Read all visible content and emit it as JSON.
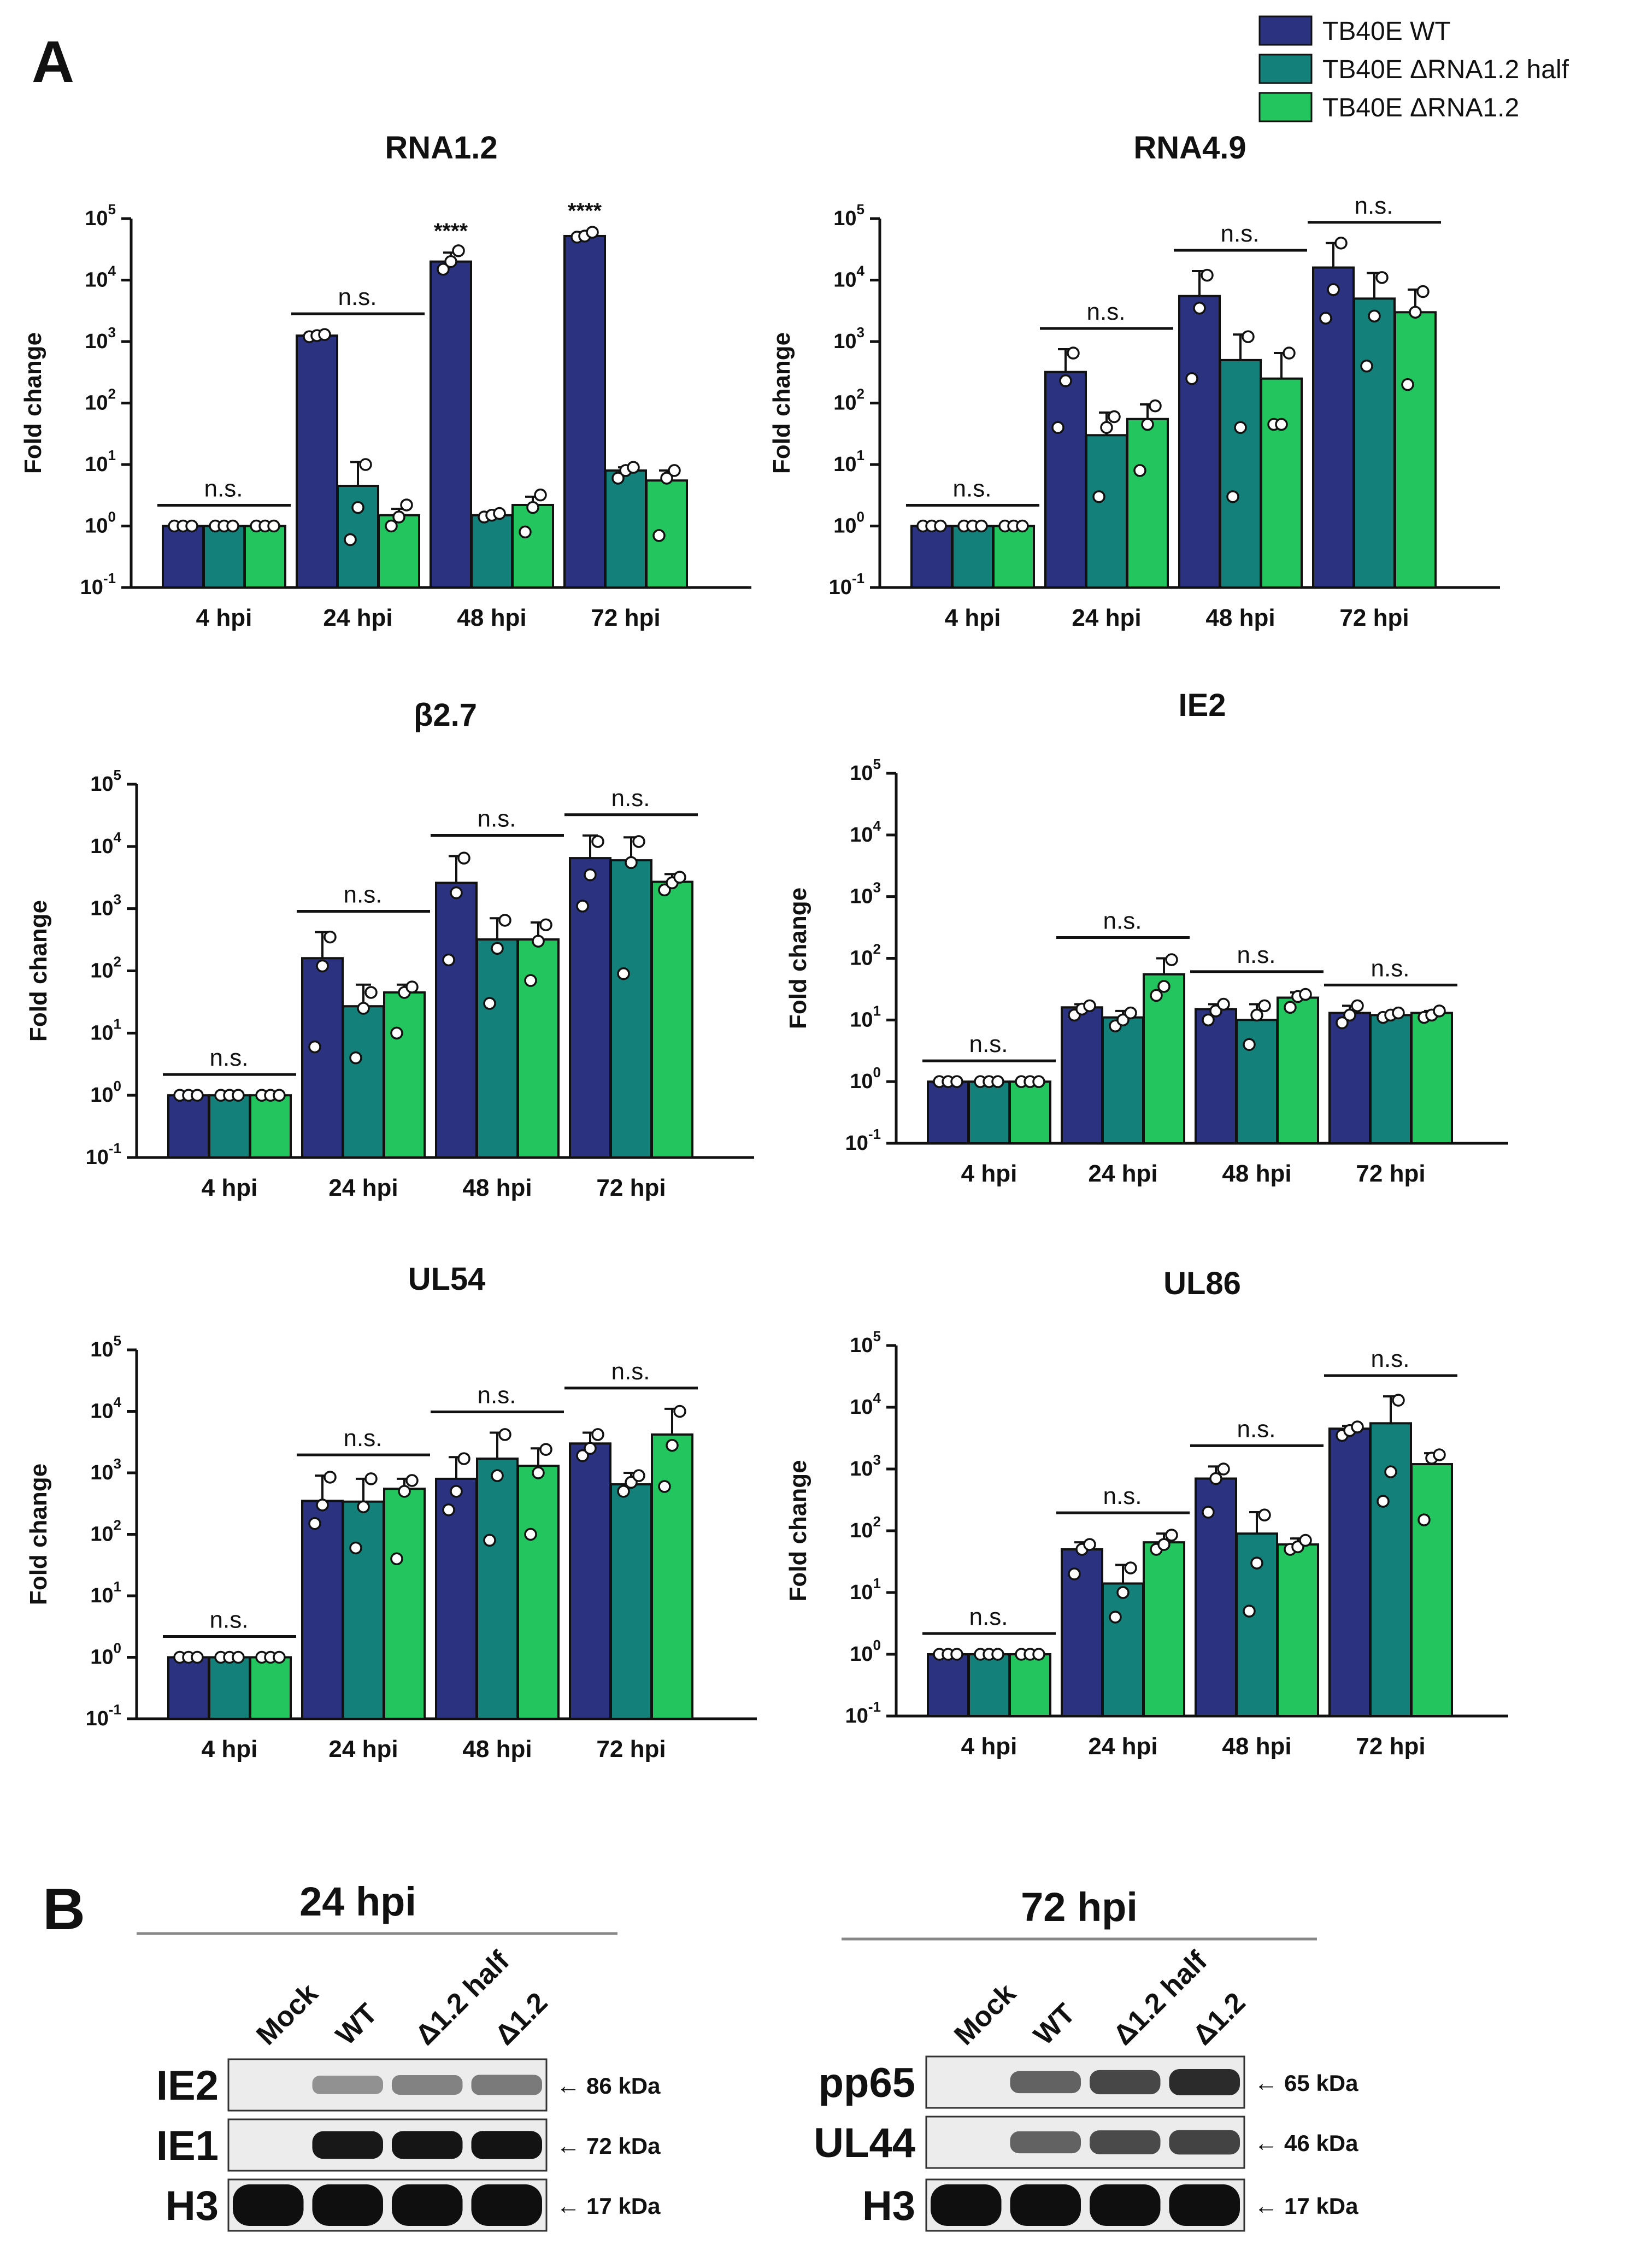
{
  "panel_a_label": "A",
  "panel_b_label": "B",
  "legend": [
    {
      "label": "TB40E WT",
      "color": "#2B3380"
    },
    {
      "label": "TB40E ΔRNA1.2 half",
      "color": "#138079"
    },
    {
      "label": "TB40E ΔRNA1.2",
      "color": "#22C55E"
    }
  ],
  "colors": {
    "wt": "#2B3380",
    "half": "#138079",
    "ko": "#22C55E",
    "axis": "#111111"
  },
  "chart_data": [
    {
      "type": "bar",
      "title": "RNA1.2",
      "ylabel": "Fold change",
      "yscale": "log",
      "ylim": [
        0.1,
        100000
      ],
      "yticks": [
        "10",
        "10",
        "10",
        "10",
        "10",
        "10",
        "10"
      ],
      "ytick_exps": [
        "-1",
        "0",
        "1",
        "2",
        "3",
        "4",
        "5"
      ],
      "categories": [
        "4 hpi",
        "24 hpi",
        "48 hpi",
        "72 hpi"
      ],
      "series": [
        {
          "name": "TB40E WT",
          "values": [
            1,
            1250,
            20000,
            52000
          ],
          "errors": [
            1,
            1300,
            28000,
            60000
          ],
          "points": [
            [
              1,
              1,
              1
            ],
            [
              1200,
              1250,
              1300
            ],
            [
              15000,
              20000,
              30000
            ],
            [
              50000,
              52000,
              60000
            ]
          ]
        },
        {
          "name": "TB40E ΔRNA1.2 half",
          "values": [
            1,
            4.5,
            1.5,
            8
          ],
          "errors": [
            1,
            11,
            1.5,
            9
          ],
          "points": [
            [
              1,
              1,
              1
            ],
            [
              0.6,
              2,
              10
            ],
            [
              1.4,
              1.5,
              1.6
            ],
            [
              6,
              8,
              9
            ]
          ]
        },
        {
          "name": "TB40E ΔRNA1.2",
          "values": [
            1,
            1.5,
            2.2,
            5.5
          ],
          "errors": [
            1,
            1.9,
            3,
            8
          ],
          "points": [
            [
              1,
              1,
              1
            ],
            [
              1,
              1.4,
              2.2
            ],
            [
              0.8,
              2,
              3.2
            ],
            [
              0.7,
              6,
              8
            ]
          ]
        }
      ],
      "significance": [
        "n.s.",
        "n.s.",
        "****",
        "****"
      ]
    },
    {
      "type": "bar",
      "title": "RNA4.9",
      "ylabel": "Fold change",
      "yscale": "log",
      "ylim": [
        0.1,
        100000
      ],
      "yticks": [
        "10",
        "10",
        "10",
        "10",
        "10",
        "10",
        "10"
      ],
      "ytick_exps": [
        "-1",
        "0",
        "1",
        "2",
        "3",
        "4",
        "5"
      ],
      "categories": [
        "4 hpi",
        "24 hpi",
        "48 hpi",
        "72 hpi"
      ],
      "series": [
        {
          "name": "TB40E WT",
          "values": [
            1,
            320,
            5500,
            16000
          ],
          "errors": [
            1,
            750,
            14000,
            40000
          ],
          "points": [
            [
              1,
              1,
              1
            ],
            [
              40,
              230,
              650
            ],
            [
              250,
              3500,
              12000
            ],
            [
              2400,
              7000,
              40000
            ]
          ]
        },
        {
          "name": "TB40E ΔRNA1.2 half",
          "values": [
            1,
            30,
            500,
            5000
          ],
          "errors": [
            1,
            70,
            1300,
            13000
          ],
          "points": [
            [
              1,
              1,
              1
            ],
            [
              3,
              40,
              60
            ],
            [
              3,
              40,
              1200
            ],
            [
              400,
              2600,
              11000
            ]
          ]
        },
        {
          "name": "TB40E ΔRNA1.2",
          "values": [
            1,
            55,
            250,
            3000
          ],
          "errors": [
            1,
            95,
            650,
            7000
          ],
          "points": [
            [
              1,
              1,
              1
            ],
            [
              8,
              45,
              90
            ],
            [
              45,
              45,
              650
            ],
            [
              200,
              3000,
              6500
            ]
          ]
        }
      ],
      "significance": [
        "n.s.",
        "n.s.",
        "n.s.",
        "n.s."
      ]
    },
    {
      "type": "bar",
      "title": "β2.7",
      "ylabel": "Fold change",
      "yscale": "log",
      "ylim": [
        0.1,
        100000
      ],
      "yticks": [
        "10",
        "10",
        "10",
        "10",
        "10",
        "10",
        "10"
      ],
      "ytick_exps": [
        "-1",
        "0",
        "1",
        "2",
        "3",
        "4",
        "5"
      ],
      "categories": [
        "4 hpi",
        "24 hpi",
        "48 hpi",
        "72 hpi"
      ],
      "series": [
        {
          "name": "TB40E WT",
          "values": [
            1,
            160,
            2600,
            6500
          ],
          "errors": [
            1,
            420,
            7000,
            15000
          ],
          "points": [
            [
              1,
              1,
              1
            ],
            [
              6,
              120,
              350
            ],
            [
              150,
              1800,
              6500
            ],
            [
              1100,
              3500,
              12000
            ]
          ]
        },
        {
          "name": "TB40E ΔRNA1.2 half",
          "values": [
            1,
            27,
            320,
            6000
          ],
          "errors": [
            1,
            60,
            700,
            14000
          ],
          "points": [
            [
              1,
              1,
              1
            ],
            [
              4,
              25,
              45
            ],
            [
              30,
              230,
              650
            ],
            [
              90,
              5500,
              12000
            ]
          ]
        },
        {
          "name": "TB40E ΔRNA1.2",
          "values": [
            1,
            45,
            320,
            2700
          ],
          "errors": [
            1,
            60,
            600,
            3600
          ],
          "points": [
            [
              1,
              1,
              1
            ],
            [
              10,
              45,
              55
            ],
            [
              70,
              300,
              550
            ],
            [
              2000,
              2600,
              3200
            ]
          ]
        }
      ],
      "significance": [
        "n.s.",
        "n.s.",
        "n.s.",
        "n.s."
      ]
    },
    {
      "type": "bar",
      "title": "IE2",
      "ylabel": "Fold change",
      "yscale": "log",
      "ylim": [
        0.1,
        100000
      ],
      "yticks": [
        "10",
        "10",
        "10",
        "10",
        "10",
        "10",
        "10"
      ],
      "ytick_exps": [
        "-1",
        "0",
        "1",
        "2",
        "3",
        "4",
        "5"
      ],
      "categories": [
        "4 hpi",
        "24 hpi",
        "48 hpi",
        "72 hpi"
      ],
      "series": [
        {
          "name": "TB40E WT",
          "values": [
            1,
            16,
            15,
            13
          ],
          "errors": [
            1,
            18,
            18,
            17
          ],
          "points": [
            [
              1,
              1,
              1
            ],
            [
              12,
              15,
              17
            ],
            [
              10,
              14,
              18
            ],
            [
              9,
              12,
              17
            ]
          ]
        },
        {
          "name": "TB40E ΔRNA1.2 half",
          "values": [
            1,
            11,
            10,
            12
          ],
          "errors": [
            1,
            14,
            18,
            13
          ],
          "points": [
            [
              1,
              1,
              1
            ],
            [
              8,
              10,
              13
            ],
            [
              4,
              12,
              17
            ],
            [
              11,
              12,
              13
            ]
          ]
        },
        {
          "name": "TB40E ΔRNA1.2",
          "values": [
            1,
            55,
            23,
            13
          ],
          "errors": [
            1,
            100,
            28,
            14
          ],
          "points": [
            [
              1,
              1,
              1
            ],
            [
              25,
              35,
              95
            ],
            [
              16,
              24,
              26
            ],
            [
              11,
              12,
              14
            ]
          ]
        }
      ],
      "significance": [
        "n.s.",
        "n.s.",
        "n.s.",
        "n.s."
      ]
    },
    {
      "type": "bar",
      "title": "UL54",
      "ylabel": "Fold change",
      "yscale": "log",
      "ylim": [
        0.1,
        100000
      ],
      "yticks": [
        "10",
        "10",
        "10",
        "10",
        "10",
        "10",
        "10"
      ],
      "ytick_exps": [
        "-1",
        "0",
        "1",
        "2",
        "3",
        "4",
        "5"
      ],
      "categories": [
        "4 hpi",
        "24 hpi",
        "48 hpi",
        "72 hpi"
      ],
      "series": [
        {
          "name": "TB40E WT",
          "values": [
            1,
            350,
            800,
            3000
          ],
          "errors": [
            1,
            900,
            1800,
            4500
          ],
          "points": [
            [
              1,
              1,
              1
            ],
            [
              150,
              300,
              850
            ],
            [
              250,
              500,
              1700
            ],
            [
              1900,
              2500,
              4200
            ]
          ]
        },
        {
          "name": "TB40E ΔRNA1.2 half",
          "values": [
            1,
            340,
            1700,
            650
          ],
          "errors": [
            1,
            800,
            4500,
            1000
          ],
          "points": [
            [
              1,
              1,
              1
            ],
            [
              60,
              280,
              800
            ],
            [
              80,
              900,
              4200
            ],
            [
              500,
              700,
              900
            ]
          ]
        },
        {
          "name": "TB40E ΔRNA1.2",
          "values": [
            1,
            550,
            1300,
            4200
          ],
          "errors": [
            1,
            800,
            2500,
            11000
          ],
          "points": [
            [
              1,
              1,
              1
            ],
            [
              40,
              500,
              750
            ],
            [
              100,
              1000,
              2400
            ],
            [
              600,
              2800,
              10000
            ]
          ]
        }
      ],
      "significance": [
        "n.s.",
        "n.s.",
        "n.s.",
        "n.s."
      ]
    },
    {
      "type": "bar",
      "title": "UL86",
      "ylabel": "Fold change",
      "yscale": "log",
      "ylim": [
        0.1,
        100000
      ],
      "yticks": [
        "10",
        "10",
        "10",
        "10",
        "10",
        "10",
        "10"
      ],
      "ytick_exps": [
        "-1",
        "0",
        "1",
        "2",
        "3",
        "4",
        "5"
      ],
      "categories": [
        "4 hpi",
        "24 hpi",
        "48 hpi",
        "72 hpi"
      ],
      "series": [
        {
          "name": "TB40E WT",
          "values": [
            1,
            50,
            700,
            4500
          ],
          "errors": [
            1,
            65,
            1100,
            5000
          ],
          "points": [
            [
              1,
              1,
              1
            ],
            [
              20,
              50,
              60
            ],
            [
              200,
              700,
              1000
            ],
            [
              3500,
              4200,
              4800
            ]
          ]
        },
        {
          "name": "TB40E ΔRNA1.2 half",
          "values": [
            1,
            14,
            90,
            5500
          ],
          "errors": [
            1,
            28,
            200,
            15000
          ],
          "points": [
            [
              1,
              1,
              1
            ],
            [
              4,
              10,
              25
            ],
            [
              5,
              30,
              180
            ],
            [
              300,
              900,
              13000
            ]
          ]
        },
        {
          "name": "TB40E ΔRNA1.2",
          "values": [
            1,
            65,
            60,
            1200
          ],
          "errors": [
            1,
            90,
            75,
            1800
          ],
          "points": [
            [
              1,
              1,
              1
            ],
            [
              50,
              60,
              85
            ],
            [
              50,
              55,
              70
            ],
            [
              150,
              1500,
              1700
            ]
          ]
        }
      ],
      "significance": [
        "n.s.",
        "n.s.",
        "n.s.",
        "n.s."
      ]
    }
  ],
  "western": [
    {
      "title": "24 hpi",
      "lanes": [
        "Mock",
        "WT",
        "Δ1.2 half",
        "Δ1.2"
      ],
      "rows": [
        {
          "label": "IE2",
          "kda": "86 kDa",
          "intensity": [
            0,
            0.3,
            0.38,
            0.42
          ]
        },
        {
          "label": "IE1",
          "kda": "72 kDa",
          "intensity": [
            0,
            0.95,
            0.97,
            0.98
          ]
        },
        {
          "label": "H3",
          "kda": "17 kDa",
          "intensity": [
            1,
            1,
            1,
            1
          ]
        }
      ]
    },
    {
      "title": "72 hpi",
      "lanes": [
        "Mock",
        "WT",
        "Δ1.2 half",
        "Δ1.2"
      ],
      "rows": [
        {
          "label": "pp65",
          "kda": "65 kDa",
          "intensity": [
            0,
            0.55,
            0.7,
            0.85
          ]
        },
        {
          "label": "UL44",
          "kda": "46 kDa",
          "intensity": [
            0,
            0.55,
            0.68,
            0.72
          ]
        },
        {
          "label": "H3",
          "kda": "17 kDa",
          "intensity": [
            1,
            1,
            1,
            1
          ]
        }
      ]
    }
  ]
}
